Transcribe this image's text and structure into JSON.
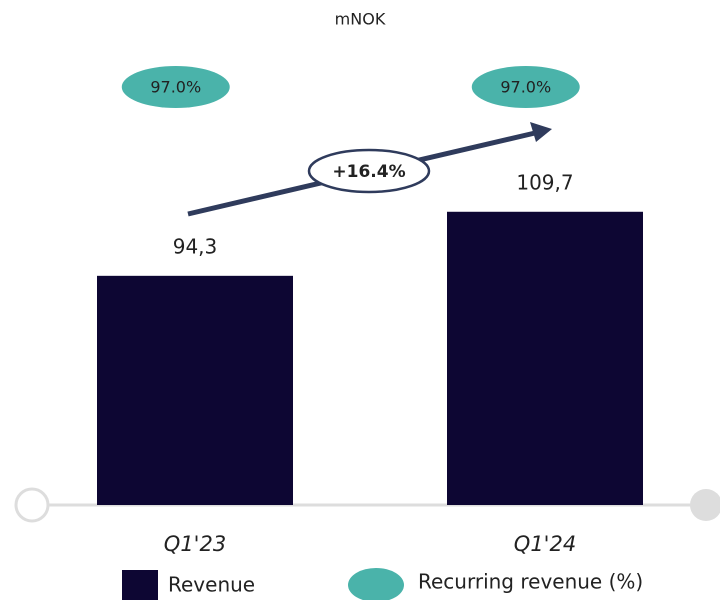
{
  "chart_data": {
    "type": "bar",
    "title": "mNOK",
    "categories": [
      "Q1'23",
      "Q1'24"
    ],
    "series": [
      {
        "name": "Revenue",
        "color": "#0d0633",
        "values": [
          94.3,
          109.7
        ],
        "value_labels": [
          "94,3",
          "109,7"
        ]
      },
      {
        "name": "Recurring revenue (%)",
        "color": "#4ab3aa",
        "values": [
          97.0,
          97.0
        ],
        "value_labels": [
          "97.0%",
          "97.0%"
        ]
      }
    ],
    "annotation": "+16.4%",
    "ylim": [
      39.2,
      151
    ]
  }
}
